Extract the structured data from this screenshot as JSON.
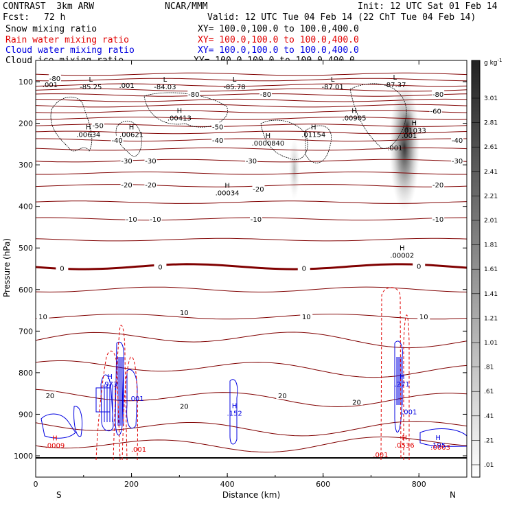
{
  "header": {
    "line1_left": "CONTRAST  3km ARW",
    "line1_mid": "NCAR/MMM",
    "line1_right": "Init: 12 UTC Sat 01 Feb 14",
    "fcst_label": "Fcst:",
    "fcst_value": "72 h",
    "valid": "Valid: 12 UTC Tue 04 Feb 14 (22 ChT Tue 04 Feb 14)"
  },
  "legend": [
    {
      "name": "Snow mixing ratio",
      "xy": "XY= 100.0,100.0 to 100.0,400.0",
      "color": "#000000"
    },
    {
      "name": "Rain water mixing ratio",
      "xy": "XY= 100.0,100.0 to 100.0,400.0",
      "color": "#e00000"
    },
    {
      "name": "Cloud water mixing ratio",
      "xy": "XY= 100.0,100.0 to 100.0,400.0",
      "color": "#0000e0"
    },
    {
      "name": "Cloud ice mixing ratio",
      "xy": "XY= 100.0,100.0 to 100.0,400.0",
      "color": "#000000"
    }
  ],
  "axes": {
    "xlabel": "Distance (km)",
    "ylabel": "Pressure (hPa)",
    "x_left_end": "S",
    "x_right_end": "N"
  },
  "colorbar": {
    "unit": "g kg",
    "unit_exp": "-1",
    "ticks": [
      "3.01",
      "2.81",
      "2.61",
      "2.41",
      "2.21",
      "2.01",
      "1.81",
      "1.61",
      "1.41",
      "1.21",
      "1.01",
      ".81",
      ".61",
      ".41",
      ".21",
      ".01"
    ]
  },
  "chart_data": {
    "type": "contour",
    "xlim": [
      0,
      900
    ],
    "ylim": [
      1050,
      50
    ],
    "xticks": [
      0,
      200,
      400,
      600,
      800
    ],
    "yticks": [
      100,
      200,
      300,
      400,
      500,
      600,
      700,
      800,
      900,
      1000
    ],
    "temperature_contour_labels": [
      {
        "text": "-80",
        "x": 40,
        "p": 92
      },
      {
        "text": "-80",
        "x": 330,
        "p": 130
      },
      {
        "text": "-80",
        "x": 480,
        "p": 130
      },
      {
        "text": "-80",
        "x": 840,
        "p": 130
      },
      {
        "text": "-60",
        "x": 835,
        "p": 170
      },
      {
        "text": "-50",
        "x": 130,
        "p": 205
      },
      {
        "text": "-50",
        "x": 380,
        "p": 208
      },
      {
        "text": "-40",
        "x": 170,
        "p": 240
      },
      {
        "text": "-40",
        "x": 380,
        "p": 240
      },
      {
        "text": "-40",
        "x": 880,
        "p": 240
      },
      {
        "text": "-30",
        "x": 190,
        "p": 290
      },
      {
        "text": "-30",
        "x": 240,
        "p": 290
      },
      {
        "text": "-30",
        "x": 450,
        "p": 290
      },
      {
        "text": "-30",
        "x": 880,
        "p": 290
      },
      {
        "text": "-20",
        "x": 190,
        "p": 348
      },
      {
        "text": "-20",
        "x": 240,
        "p": 348
      },
      {
        "text": "-20",
        "x": 465,
        "p": 358
      },
      {
        "text": "-20",
        "x": 840,
        "p": 348
      },
      {
        "text": "-10",
        "x": 200,
        "p": 430
      },
      {
        "text": "-10",
        "x": 250,
        "p": 430
      },
      {
        "text": "-10",
        "x": 460,
        "p": 430
      },
      {
        "text": "-10",
        "x": 840,
        "p": 430
      },
      {
        "text": "0",
        "x": 55,
        "p": 548
      },
      {
        "text": "0",
        "x": 260,
        "p": 545
      },
      {
        "text": "0",
        "x": 560,
        "p": 548
      },
      {
        "text": "0",
        "x": 800,
        "p": 543
      },
      {
        "text": "10",
        "x": 15,
        "p": 665
      },
      {
        "text": "10",
        "x": 310,
        "p": 655
      },
      {
        "text": "10",
        "x": 565,
        "p": 665
      },
      {
        "text": "10",
        "x": 810,
        "p": 665
      },
      {
        "text": "20",
        "x": 30,
        "p": 855
      },
      {
        "text": "20",
        "x": 310,
        "p": 880
      },
      {
        "text": "20",
        "x": 515,
        "p": 855
      },
      {
        "text": "20",
        "x": 670,
        "p": 870
      }
    ],
    "extremum_labels": [
      {
        "type": "L",
        "value": "-85.25",
        "x": 115,
        "p": 100
      },
      {
        "type": "L",
        "value": "-84.03",
        "x": 270,
        "p": 100
      },
      {
        "type": "L",
        "value": "-85.78",
        "x": 415,
        "p": 100
      },
      {
        "type": "L",
        "value": "-87.01",
        "x": 620,
        "p": 100
      },
      {
        "type": "L",
        "value": "-87.37",
        "x": 750,
        "p": 95
      },
      {
        "type": "H",
        "value": ".00413",
        "x": 300,
        "p": 175
      },
      {
        "type": "H",
        "value": ".00905",
        "x": 665,
        "p": 175
      },
      {
        "type": "H",
        "value": ".01033",
        "x": 790,
        "p": 205
      },
      {
        "type": "H",
        "value": ".00634",
        "x": 110,
        "p": 215
      },
      {
        "type": "H",
        "value": ".00621",
        "x": 200,
        "p": 215
      },
      {
        "type": "H",
        "value": ".01154",
        "x": 580,
        "p": 215
      },
      {
        "type": "H",
        "value": ".0000840",
        "x": 485,
        "p": 235
      },
      {
        "type": "H",
        "value": ".00034",
        "x": 400,
        "p": 355
      },
      {
        "type": "H",
        "value": ".00002",
        "x": 765,
        "p": 505
      },
      {
        "type": "H",
        "value": ".973",
        "x": 155,
        "p": 815
      },
      {
        "type": "H",
        "value": ".271",
        "x": 765,
        "p": 815
      },
      {
        "type": "H",
        "value": ".152",
        "x": 415,
        "p": 885
      },
      {
        "type": "H",
        "value": ".0536",
        "x": 770,
        "p": 962
      },
      {
        "type": "H",
        "value": ".195",
        "x": 840,
        "p": 962
      },
      {
        "type": "H",
        "value": ".0009",
        "x": 40,
        "p": 963
      }
    ],
    "cloud_labels": [
      {
        "text": ".001",
        "x": 30,
        "p": 113,
        "color": "#000000"
      },
      {
        "text": ".001",
        "x": 190,
        "p": 115,
        "color": "#000000"
      },
      {
        "text": ".001",
        "x": 780,
        "p": 235,
        "color": "#000000"
      },
      {
        "text": ".001",
        "x": 750,
        "p": 265,
        "color": "#000000"
      },
      {
        "text": ".001",
        "x": 210,
        "p": 868,
        "color": "#0000e0"
      },
      {
        "text": ".001",
        "x": 780,
        "p": 900,
        "color": "#0000e0"
      },
      {
        "text": ".001",
        "x": 215,
        "p": 990,
        "color": "#e00000"
      },
      {
        "text": ".001",
        "x": 720,
        "p": 1003,
        "color": "#e00000"
      },
      {
        "text": ".0003",
        "x": 845,
        "p": 985,
        "color": "#e00000"
      }
    ]
  }
}
